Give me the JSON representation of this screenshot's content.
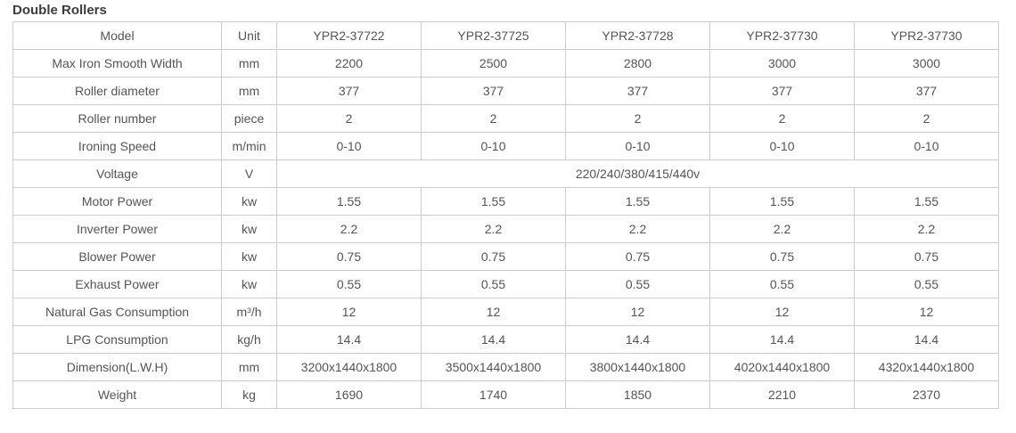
{
  "title": "Double Rollers",
  "colors": {
    "background": "#ffffff",
    "border": "#cccccc",
    "text": "#555555",
    "title_text": "#3c3c3c"
  },
  "table": {
    "header": {
      "model_label": "Model",
      "unit_label": "Unit",
      "models": [
        "YPR2-37722",
        "YPR2-37725",
        "YPR2-37728",
        "YPR2-37730",
        "YPR2-37730"
      ]
    },
    "rows": [
      {
        "label": "Max Iron Smooth Width",
        "unit": "mm",
        "values": [
          "2200",
          "2500",
          "2800",
          "3000",
          "3000"
        ]
      },
      {
        "label": "Roller diameter",
        "unit": "mm",
        "values": [
          "377",
          "377",
          "377",
          "377",
          "377"
        ]
      },
      {
        "label": "Roller number",
        "unit": "piece",
        "values": [
          "2",
          "2",
          "2",
          "2",
          "2"
        ]
      },
      {
        "label": "Ironing Speed",
        "unit": "m/min",
        "values": [
          "0-10",
          "0-10",
          "0-10",
          "0-10",
          "0-10"
        ]
      },
      {
        "label": "Voltage",
        "unit": "V",
        "span_value": "220/240/380/415/440v"
      },
      {
        "label": "Motor Power",
        "unit": "kw",
        "values": [
          "1.55",
          "1.55",
          "1.55",
          "1.55",
          "1.55"
        ]
      },
      {
        "label": "Inverter Power",
        "unit": "kw",
        "values": [
          "2.2",
          "2.2",
          "2.2",
          "2.2",
          "2.2"
        ]
      },
      {
        "label": "Blower Power",
        "unit": "kw",
        "values": [
          "0.75",
          "0.75",
          "0.75",
          "0.75",
          "0.75"
        ]
      },
      {
        "label": "Exhaust Power",
        "unit": "kw",
        "values": [
          "0.55",
          "0.55",
          "0.55",
          "0.55",
          "0.55"
        ]
      },
      {
        "label": "Natural Gas Consumption",
        "unit": "m³/h",
        "values": [
          "12",
          "12",
          "12",
          "12",
          "12"
        ]
      },
      {
        "label": "LPG Consumption",
        "unit": "kg/h",
        "values": [
          "14.4",
          "14.4",
          "14.4",
          "14.4",
          "14.4"
        ]
      },
      {
        "label": "Dimension(L.W.H)",
        "unit": "mm",
        "values": [
          "3200x1440x1800",
          "3500x1440x1800",
          "3800x1440x1800",
          "4020x1440x1800",
          "4320x1440x1800"
        ]
      },
      {
        "label": "Weight",
        "unit": "kg",
        "values": [
          "1690",
          "1740",
          "1850",
          "2210",
          "2370"
        ]
      }
    ]
  }
}
